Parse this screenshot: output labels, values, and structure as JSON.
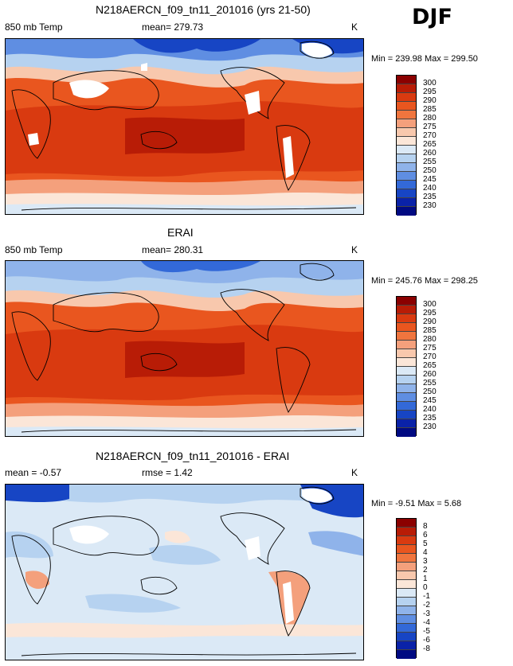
{
  "season": "DJF",
  "panels": [
    {
      "title": "N218AERCN_f09_tn11_201016 (yrs 21-50)",
      "left_label": "850 mb Temp",
      "center_label": "mean= 279.73",
      "units": "K",
      "minmax": "Min = 239.98 Max = 299.50",
      "colorbar_labels": [
        "300",
        "295",
        "290",
        "285",
        "280",
        "275",
        "270",
        "265",
        "260",
        "255",
        "250",
        "245",
        "240",
        "235",
        "230"
      ]
    },
    {
      "title": "ERAI",
      "left_label": "850 mb Temp",
      "center_label": "mean= 280.31",
      "units": "K",
      "minmax": "Min = 245.76 Max = 298.25",
      "colorbar_labels": [
        "300",
        "295",
        "290",
        "285",
        "280",
        "275",
        "270",
        "265",
        "260",
        "255",
        "250",
        "245",
        "240",
        "235",
        "230"
      ]
    },
    {
      "title": "N218AERCN_f09_tn11_201016 - ERAI",
      "left_label": "mean =  -0.57",
      "center_label": "rmse =   1.42",
      "units": "K",
      "minmax": "Min =  -9.51 Max =   5.68",
      "colorbar_labels": [
        "8",
        "6",
        "5",
        "4",
        "3",
        "2",
        "1",
        "0",
        "-1",
        "-2",
        "-3",
        "-4",
        "-5",
        "-6",
        "-8"
      ]
    }
  ],
  "colors": {
    "abs_scale": [
      "#8b0000",
      "#b81c06",
      "#d93a10",
      "#e9561f",
      "#f0753e",
      "#f4a07c",
      "#f8c8ad",
      "#fbe6d8",
      "#dbe9f6",
      "#b6d2f0",
      "#8fb3ea",
      "#5f8ee2",
      "#3369d8",
      "#1745c4",
      "#0a22a8",
      "#000a82"
    ],
    "diff_scale": [
      "#8b0000",
      "#b81c06",
      "#d93a10",
      "#e9561f",
      "#f0753e",
      "#f4a07c",
      "#f8c8ad",
      "#fbe6d8",
      "#dbe9f6",
      "#b6d2f0",
      "#8fb3ea",
      "#5f8ee2",
      "#3369d8",
      "#1745c4",
      "#0a22a8",
      "#000a82"
    ],
    "missing": "#ffffff",
    "land_outline": "#000000"
  }
}
